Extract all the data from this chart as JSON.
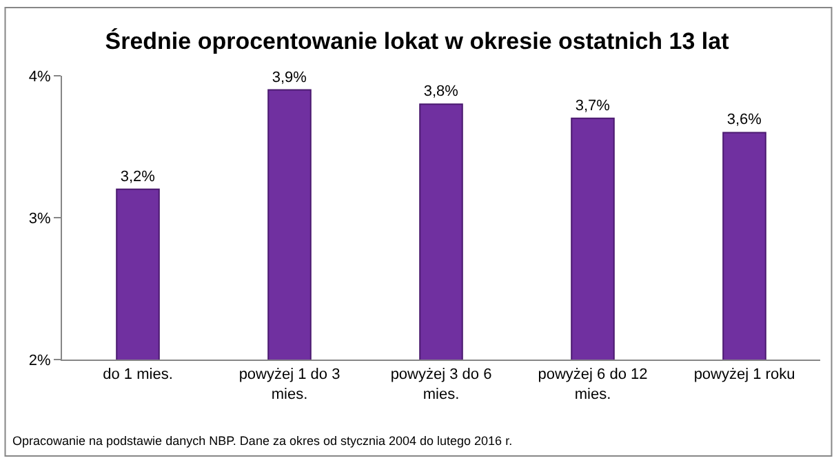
{
  "chart_data": {
    "type": "bar",
    "title": "Średnie oprocentowanie lokat w okresie ostatnich 13 lat",
    "categories": [
      "do 1 mies.",
      "powyżej 1 do 3 mies.",
      "powyżej 3 do 6 mies.",
      "powyżej 6 do 12 mies.",
      "powyżej 1 roku"
    ],
    "values": [
      3.2,
      3.9,
      3.8,
      3.7,
      3.6
    ],
    "value_labels": [
      "3,2%",
      "3,9%",
      "3,8%",
      "3,7%",
      "3,6%"
    ],
    "color": "#7030a0",
    "ylim": [
      2,
      4
    ],
    "yticks": [
      {
        "value": 2,
        "label": "2%"
      },
      {
        "value": 3,
        "label": "3%"
      },
      {
        "value": 4,
        "label": "4%"
      }
    ],
    "legend": false,
    "annotations": [
      "Opracowanie na podstawie danych NBP. Dane za okres od stycznia 2004 do lutego 2016 r."
    ]
  }
}
